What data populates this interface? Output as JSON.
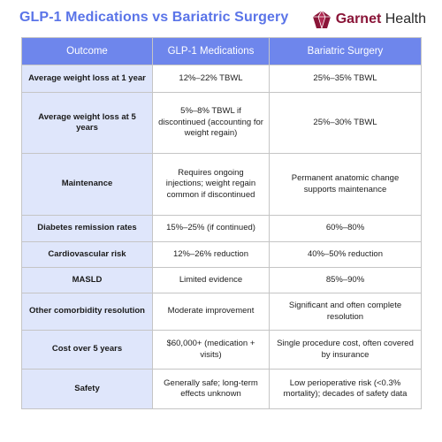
{
  "header": {
    "title": "GLP-1 Medications vs Bariatric Surgery",
    "brand_bold": "Garnet",
    "brand_regular": " Health",
    "logo_icon": "garnet-gem-icon",
    "logo_color": "#8a1538"
  },
  "table": {
    "columns": [
      "Outcome",
      "GLP-1 Medications",
      "Bariatric Surgery"
    ],
    "rows": [
      {
        "outcome": "Average weight loss at 1 year",
        "glp1": "12%–22% TBWL",
        "surgery": "25%–35% TBWL"
      },
      {
        "outcome": "Average weight loss at 5 years",
        "glp1": "5%–8% TBWL if discontinued (accounting for weight regain)",
        "surgery": "25%–30% TBWL"
      },
      {
        "outcome": "Maintenance",
        "glp1": "Requires ongoing injections; weight regain common if discontinued",
        "surgery": "Permanent anatomic change supports maintenance"
      },
      {
        "outcome": "Diabetes remission rates",
        "glp1": "15%–25% (if continued)",
        "surgery": "60%–80%"
      },
      {
        "outcome": "Cardiovascular risk",
        "glp1": "12%–26% reduction",
        "surgery": "40%–50% reduction"
      },
      {
        "outcome": "MASLD",
        "glp1": "Limited evidence",
        "surgery": "85%–90%"
      },
      {
        "outcome": "Other comorbidity resolution",
        "glp1": "Moderate improvement",
        "surgery": "Significant and often complete resolution"
      },
      {
        "outcome": "Cost over 5 years",
        "glp1": "$60,000+ (medication + visits)",
        "surgery": "Single procedure cost, often covered by insurance"
      },
      {
        "outcome": "Safety",
        "glp1": "Generally safe; long-term effects unknown",
        "surgery": "Low perioperative risk (<0.3% mortality); decades of safety data"
      }
    ]
  },
  "colors": {
    "header_bg": "#6e86ec",
    "outcome_bg": "#dfe6fb",
    "title_color": "#5a74e8"
  }
}
